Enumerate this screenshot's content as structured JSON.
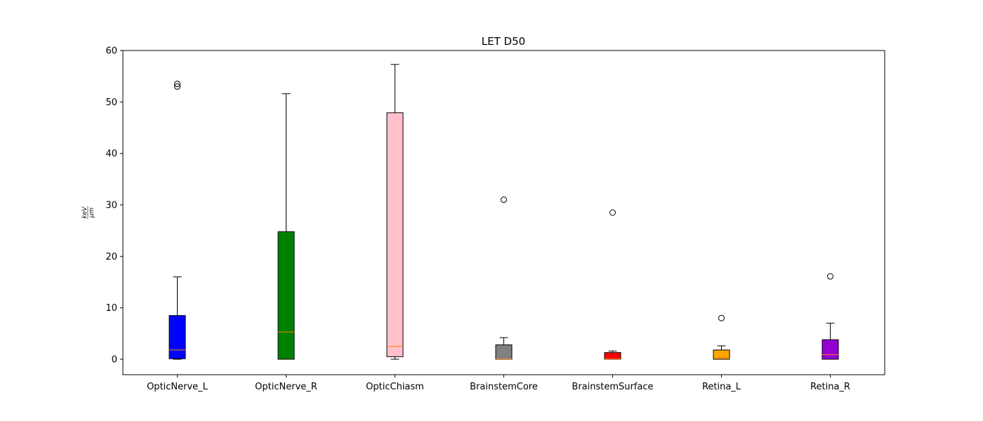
{
  "chart_data": {
    "type": "boxplot",
    "title": "LET D50",
    "ylabel_num": "keV",
    "ylabel_den": "μm",
    "ylim": [
      -3,
      60
    ],
    "yticks": [
      0,
      10,
      20,
      30,
      40,
      50,
      60
    ],
    "grid": false,
    "series": [
      {
        "name": "OpticNerve_L",
        "color": "#0000ff",
        "whisker_low": 0.0,
        "q1": 0.1,
        "median": 1.8,
        "q3": 8.5,
        "whisker_high": 16.0,
        "outliers": [
          53.0,
          53.5
        ]
      },
      {
        "name": "OpticNerve_R",
        "color": "#008000",
        "whisker_low": 0.0,
        "q1": 0.0,
        "median": 5.3,
        "q3": 24.8,
        "whisker_high": 51.6,
        "outliers": []
      },
      {
        "name": "OpticChiasm",
        "color": "#ffc0cb",
        "whisker_low": 0.0,
        "q1": 0.5,
        "median": 2.5,
        "q3": 47.9,
        "whisker_high": 57.3,
        "outliers": []
      },
      {
        "name": "BrainstemCore",
        "color": "#808080",
        "whisker_low": 0.0,
        "q1": 0.0,
        "median": 0.05,
        "q3": 2.8,
        "whisker_high": 4.2,
        "outliers": [
          31.0
        ]
      },
      {
        "name": "BrainstemSurface",
        "color": "#ff0000",
        "whisker_low": 0.0,
        "q1": 0.0,
        "median": 0.05,
        "q3": 1.3,
        "whisker_high": 1.6,
        "outliers": [
          28.5
        ]
      },
      {
        "name": "Retina_L",
        "color": "#ffa500",
        "whisker_low": 0.0,
        "q1": 0.0,
        "median": 0.3,
        "q3": 1.8,
        "whisker_high": 2.6,
        "outliers": [
          8.0
        ]
      },
      {
        "name": "Retina_R",
        "color": "#9400d3",
        "whisker_low": 0.0,
        "q1": 0.0,
        "median": 0.9,
        "q3": 3.8,
        "whisker_high": 7.0,
        "outliers": [
          16.1
        ]
      }
    ],
    "median_color": "#ff7f0e"
  }
}
